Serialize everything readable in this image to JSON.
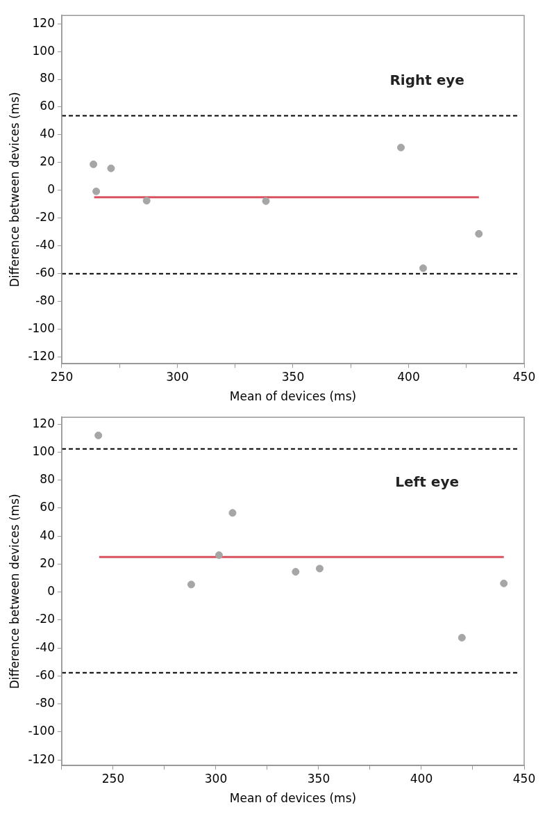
{
  "chart_data": [
    {
      "type": "scatter",
      "xlabel": "Mean of devices (ms)",
      "ylabel": "Difference between devices (ms)",
      "annotations": [
        "Right eye"
      ],
      "xlim": [
        250,
        450
      ],
      "ylim": [
        -125,
        126
      ],
      "xticks": [
        250,
        {
          "value": 275,
          "label": null
        },
        300,
        {
          "value": 325,
          "label": null
        },
        350,
        {
          "value": 375,
          "label": null
        },
        400,
        {
          "value": 425,
          "label": null
        },
        450
      ],
      "yticks": [
        -120,
        -100,
        -80,
        -60,
        -40,
        -20,
        0,
        20,
        40,
        60,
        80,
        100,
        120
      ],
      "grid": false,
      "legend": false,
      "series": [
        {
          "type": "scatter",
          "marker": "circle",
          "color": "#a6a6a6",
          "x": [
            263.7,
            264.9,
            271.3,
            286.7,
            338.3,
            396.7,
            406.3,
            430.4
          ],
          "values": [
            18.7,
            -0.8,
            15.8,
            -7.5,
            -7.8,
            30.8,
            -56.2,
            -31.4
          ]
        },
        {
          "type": "line",
          "color": "#d9515e",
          "x": [
            264,
            430.4
          ],
          "values": [
            -5,
            -5
          ]
        }
      ],
      "ref_lines": [
        {
          "axis": "y",
          "value": 53.7,
          "color": "#000000",
          "line_style": "dashed"
        },
        {
          "axis": "y",
          "value": -60.1,
          "color": "#000000",
          "line_style": "dashed"
        }
      ]
    },
    {
      "type": "scatter",
      "xlabel": "Mean of devices (ms)",
      "ylabel": "Difference between devices (ms)",
      "annotations": [
        "Left eye"
      ],
      "xlim": [
        225,
        450
      ],
      "ylim": [
        -124,
        125
      ],
      "xticks": [
        {
          "value": 225,
          "label": null
        },
        250,
        {
          "value": 275,
          "label": null
        },
        300,
        {
          "value": 325,
          "label": null
        },
        350,
        {
          "value": 375,
          "label": null
        },
        400,
        {
          "value": 425,
          "label": null
        },
        450
      ],
      "yticks": [
        -120,
        -100,
        -80,
        -60,
        -40,
        -20,
        0,
        20,
        40,
        60,
        80,
        100,
        120
      ],
      "grid": false,
      "legend": false,
      "series": [
        {
          "type": "scatter",
          "marker": "circle",
          "color": "#a6a6a6",
          "x": [
            242.8,
            288,
            301.5,
            308.1,
            338.8,
            350.5,
            419.7,
            440.1
          ],
          "values": [
            112,
            5.4,
            26.4,
            56.6,
            14.5,
            16.8,
            -32.6,
            6.2
          ]
        },
        {
          "type": "line",
          "color": "#d9515e",
          "x": [
            243.2,
            440.1
          ],
          "values": [
            25.1,
            25.1
          ]
        }
      ],
      "ref_lines": [
        {
          "axis": "y",
          "value": 102.4,
          "color": "#000000",
          "line_style": "dashed"
        },
        {
          "axis": "y",
          "value": -57.7,
          "color": "#000000",
          "line_style": "dashed"
        }
      ]
    }
  ]
}
